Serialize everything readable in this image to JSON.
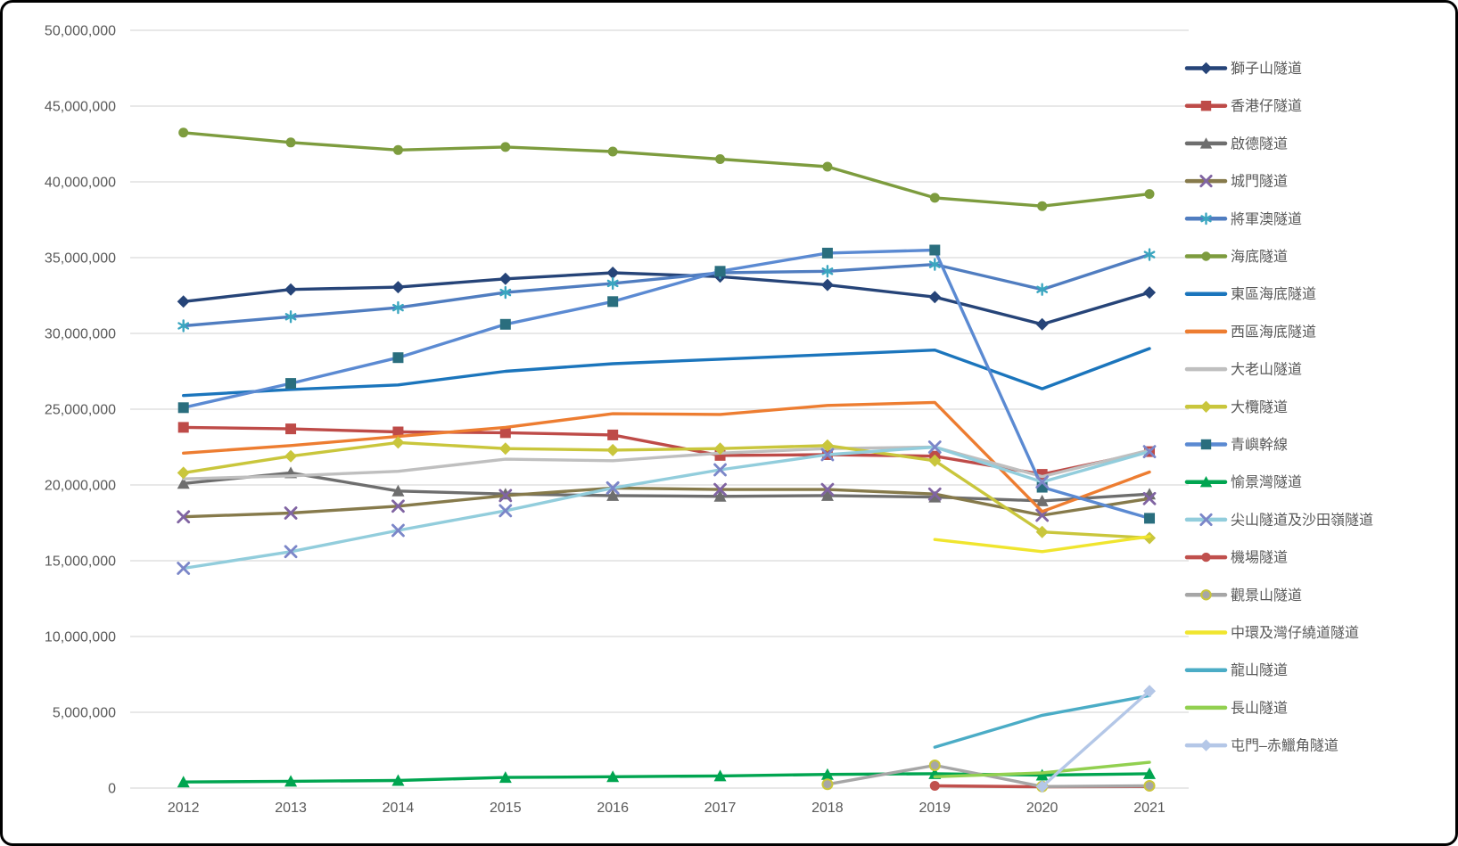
{
  "chart_data": {
    "type": "line",
    "title": "",
    "xlabel": "",
    "ylabel": "",
    "grid": true,
    "legend_position": "right",
    "ylim": [
      0,
      50000000
    ],
    "ytick_step": 5000000,
    "y_tick_labels": [
      "0",
      "5,000,000",
      "10,000,000",
      "15,000,000",
      "20,000,000",
      "25,000,000",
      "30,000,000",
      "35,000,000",
      "40,000,000",
      "45,000,000",
      "50,000,000"
    ],
    "x_tick_labels": [
      "2012",
      "2013",
      "2014",
      "2015",
      "2016",
      "2017",
      "2018",
      "2019",
      "2020",
      "2021"
    ],
    "x": [
      2012,
      2013,
      2014,
      2015,
      2016,
      2017,
      2018,
      2019,
      2020,
      2021
    ],
    "axis_text_color": "#595959",
    "gridline_color": "#D9D9D9",
    "series": [
      {
        "key": "lion-rock",
        "name": "獅子山隧道",
        "color": "#264478",
        "marker": "diamond",
        "marker_color": "#264478",
        "values": [
          32100000,
          32900000,
          33050000,
          33600000,
          34000000,
          33750000,
          33200000,
          32400000,
          30600000,
          32700000
        ]
      },
      {
        "key": "aberdeen",
        "name": "香港仔隧道",
        "color": "#BE4B48",
        "marker": "square",
        "marker_color": "#BE4B48",
        "values": [
          23800000,
          23700000,
          23500000,
          23450000,
          23300000,
          21950000,
          22000000,
          21900000,
          20700000,
          22200000
        ]
      },
      {
        "key": "kai-tak",
        "name": "啟德隧道",
        "color": "#6E6E6E",
        "marker": "triangle",
        "marker_color": "#6E6E6E",
        "values": [
          20100000,
          20800000,
          19600000,
          19400000,
          19300000,
          19250000,
          19300000,
          19200000,
          18950000,
          19400000
        ]
      },
      {
        "key": "shing-mun",
        "name": "城門隧道",
        "color": "#867A4B",
        "marker": "x",
        "marker_color": "#8064A2",
        "values": [
          17900000,
          18150000,
          18600000,
          19300000,
          19800000,
          19700000,
          19700000,
          19400000,
          18000000,
          19100000
        ]
      },
      {
        "key": "tseung-kwan-o",
        "name": "將軍澳隧道",
        "color": "#507DC0",
        "marker": "asterisk",
        "marker_color": "#3BA6C0",
        "values": [
          30500000,
          31100000,
          31700000,
          32700000,
          33300000,
          34000000,
          34100000,
          34550000,
          32900000,
          35200000
        ]
      },
      {
        "key": "cross-harbour",
        "name": "海底隧道",
        "color": "#7D9C3E",
        "marker": "circle",
        "marker_color": "#7D9C3E",
        "values": [
          43250000,
          42600000,
          42100000,
          42300000,
          42000000,
          41500000,
          41000000,
          38950000,
          38400000,
          39200000
        ]
      },
      {
        "key": "eastern-harbour",
        "name": "東區海底隧道",
        "color": "#1B75BC",
        "marker": "none",
        "marker_color": "#1B75BC",
        "values": [
          25900000,
          26300000,
          26600000,
          27500000,
          28000000,
          28300000,
          28600000,
          28900000,
          26350000,
          29000000
        ]
      },
      {
        "key": "western-harbour",
        "name": "西區海底隧道",
        "color": "#ED7D31",
        "marker": "none",
        "marker_color": "#ED7D31",
        "values": [
          22100000,
          22600000,
          23200000,
          23800000,
          24700000,
          24650000,
          25250000,
          25450000,
          18250000,
          20850000
        ]
      },
      {
        "key": "tates-cairn",
        "name": "大老山隧道",
        "color": "#BFBFBF",
        "marker": "none",
        "marker_color": "#BFBFBF",
        "values": [
          20400000,
          20600000,
          20900000,
          21700000,
          21600000,
          22100000,
          22400000,
          22500000,
          20550000,
          22300000
        ]
      },
      {
        "key": "tai-lam",
        "name": "大欖隧道",
        "color": "#C9C63C",
        "marker": "diamond",
        "marker_color": "#C9C63C",
        "values": [
          20800000,
          21900000,
          22800000,
          22400000,
          22300000,
          22400000,
          22600000,
          21600000,
          16900000,
          16500000
        ]
      },
      {
        "key": "lantau-link",
        "name": "青嶼幹線",
        "color": "#5B8AD2",
        "marker": "square",
        "marker_color": "#2A6E7E",
        "values": [
          25100000,
          26700000,
          28400000,
          30600000,
          32100000,
          34100000,
          35300000,
          35500000,
          19850000,
          17800000
        ]
      },
      {
        "key": "discovery-bay",
        "name": "愉景灣隧道",
        "color": "#00A550",
        "marker": "triangle",
        "marker_color": "#00A550",
        "values": [
          400000,
          450000,
          500000,
          700000,
          750000,
          800000,
          900000,
          950000,
          850000,
          950000
        ]
      },
      {
        "key": "eagles-nest-sha-tin-heights",
        "name": "尖山隧道及沙田嶺隧道",
        "color": "#92CDDC",
        "marker": "x",
        "marker_color": "#7B86C8",
        "values": [
          14500000,
          15600000,
          17000000,
          18300000,
          19800000,
          21000000,
          22000000,
          22500000,
          20200000,
          22200000
        ]
      },
      {
        "key": "airport",
        "name": "機場隧道",
        "color": "#C0504D",
        "marker": "circle",
        "marker_color": "#C0504D",
        "values": [
          null,
          null,
          null,
          null,
          null,
          null,
          null,
          150000,
          80000,
          100000
        ]
      },
      {
        "key": "scenic-hill",
        "name": "觀景山隧道",
        "color": "#A6A6A6",
        "marker": "circle",
        "marker_color": "#A6A6A6",
        "marker_stroke": "#C9C63C",
        "values": [
          null,
          null,
          null,
          null,
          null,
          null,
          250000,
          1500000,
          100000,
          150000
        ]
      },
      {
        "key": "central-wan-chai-bypass",
        "name": "中環及灣仔繞道隧道",
        "color": "#F0E52E",
        "marker": "none",
        "marker_color": "#F0E52E",
        "values": [
          null,
          null,
          null,
          null,
          null,
          null,
          null,
          16400000,
          15600000,
          16600000
        ]
      },
      {
        "key": "lung-shan",
        "name": "龍山隧道",
        "color": "#4BACC6",
        "marker": "none",
        "marker_color": "#4BACC6",
        "values": [
          null,
          null,
          null,
          null,
          null,
          null,
          null,
          2700000,
          4800000,
          6100000
        ]
      },
      {
        "key": "cheung-shan",
        "name": "長山隧道",
        "color": "#92D050",
        "marker": "none",
        "marker_color": "#92D050",
        "values": [
          null,
          null,
          null,
          null,
          null,
          null,
          null,
          750000,
          1000000,
          1700000
        ]
      },
      {
        "key": "tuen-mun-chek-lap-kok",
        "name": "屯門–赤鱲角隧道",
        "color": "#B4C7E7",
        "marker": "diamond",
        "marker_color": "#B4C7E7",
        "values": [
          null,
          null,
          null,
          null,
          null,
          null,
          null,
          null,
          100000,
          6400000
        ]
      }
    ]
  }
}
